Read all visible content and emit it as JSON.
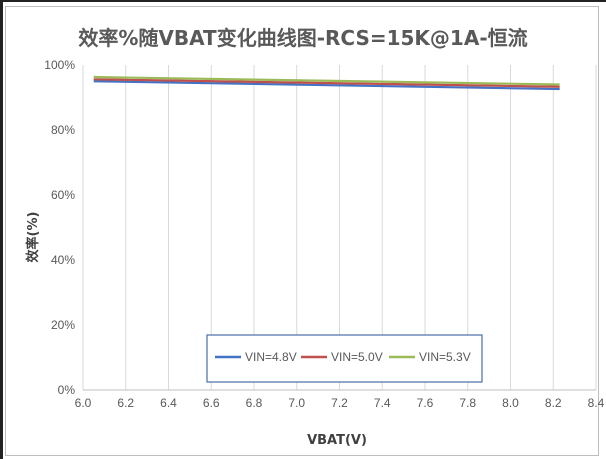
{
  "chart_data": {
    "type": "line",
    "title": "效率%随VBAT变化曲线图-RCS=15K@1A-恒流",
    "xlabel": "VBAT(V)",
    "ylabel": "效率(%)",
    "xlim": [
      6.0,
      8.4
    ],
    "ylim": [
      0,
      100
    ],
    "x_ticks": [
      "6.0",
      "6.2",
      "6.4",
      "6.6",
      "6.8",
      "7.0",
      "7.2",
      "7.4",
      "7.6",
      "7.8",
      "8.0",
      "8.2",
      "8.4"
    ],
    "y_ticks": [
      "0%",
      "20%",
      "40%",
      "60%",
      "80%",
      "100%"
    ],
    "grid": "vertical",
    "legend_position": "bottom-center",
    "series": [
      {
        "name": "VIN=4.8V",
        "color": "#4472c4",
        "x": [
          6.05,
          8.23
        ],
        "y": [
          95.0,
          92.6
        ]
      },
      {
        "name": "VIN=5.0V",
        "color": "#c0504d",
        "x": [
          6.05,
          8.23
        ],
        "y": [
          95.6,
          93.3
        ]
      },
      {
        "name": "VIN=5.3V",
        "color": "#9bbb59",
        "x": [
          6.05,
          8.23
        ],
        "y": [
          96.3,
          94.0
        ]
      }
    ]
  }
}
